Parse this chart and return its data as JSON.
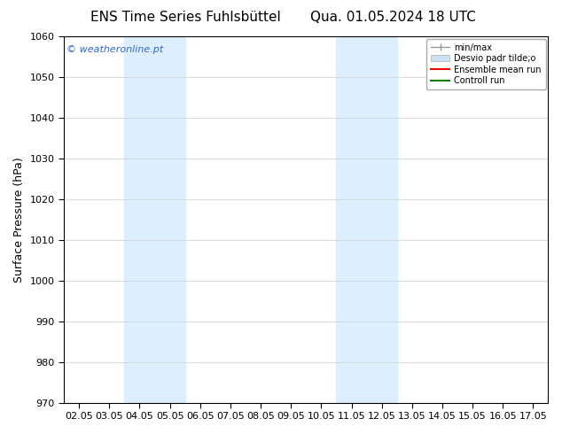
{
  "title_left": "ENS Time Series Fuhlsbüttel",
  "title_right": "Qua. 01.05.2024 18 UTC",
  "ylabel": "Surface Pressure (hPa)",
  "ylim": [
    970,
    1060
  ],
  "yticks": [
    970,
    980,
    990,
    1000,
    1010,
    1020,
    1030,
    1040,
    1050,
    1060
  ],
  "xtick_positions": [
    0,
    1,
    2,
    3,
    4,
    5,
    6,
    7,
    8,
    9,
    10,
    11,
    12,
    13,
    14,
    15
  ],
  "xtick_labels": [
    "02.05",
    "03.05",
    "04.05",
    "05.05",
    "06.05",
    "07.05",
    "08.05",
    "09.05",
    "10.05",
    "11.05",
    "12.05",
    "13.05",
    "14.05",
    "15.05",
    "16.05",
    "17.05"
  ],
  "xlim": [
    -0.5,
    15.5
  ],
  "watermark": "© weatheronline.pt",
  "watermark_color": "#3366cc",
  "background_color": "#ffffff",
  "plot_bg_color": "#ffffff",
  "shaded_regions": [
    {
      "xmin": 1.5,
      "xmax": 3.5,
      "color": "#ddeeff"
    },
    {
      "xmin": 8.5,
      "xmax": 10.5,
      "color": "#ddeeff"
    }
  ],
  "legend_entries": [
    {
      "label": "min/max"
    },
    {
      "label": "Desvio padr tilde;o"
    },
    {
      "label": "Ensemble mean run"
    },
    {
      "label": "Controll run"
    }
  ],
  "title_fontsize": 11,
  "tick_fontsize": 8,
  "label_fontsize": 9,
  "watermark_fontsize": 8,
  "grid_color": "#cccccc"
}
